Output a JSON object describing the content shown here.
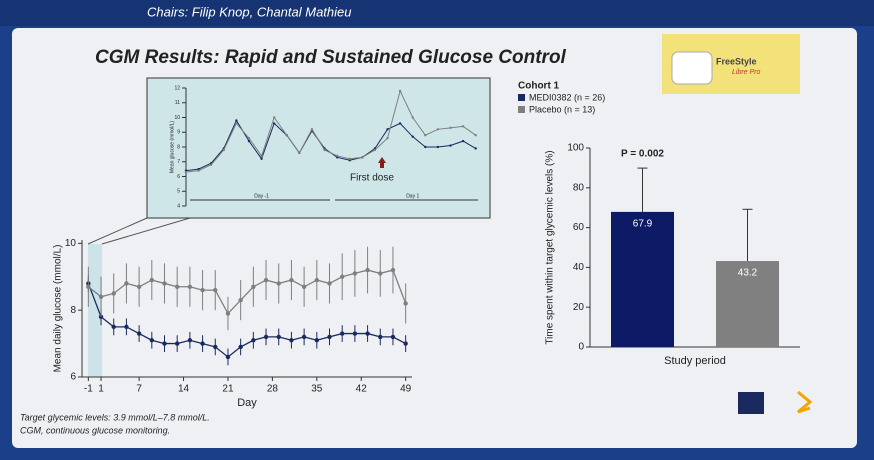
{
  "header": {
    "chairs": "Chairs: Filip Knop, Chantal Mathieu"
  },
  "slide": {
    "title": "CGM Results: Rapid and Sustained Glucose Control",
    "logo_text": [
      "FreeStyle",
      "Libre Pro"
    ],
    "footnotes": [
      "Target glycemic levels: 3.9 mmol/L–7.8 mmol/L.",
      "CGM, continuous glucose monitoring."
    ]
  },
  "chart_data": [
    {
      "type": "line",
      "x_label": "Day",
      "y_label": "Mean daily glucose (mmol/L)",
      "legend_title": "Cohort 1",
      "x": [
        -1,
        1,
        3,
        5,
        7,
        9,
        11,
        13,
        15,
        17,
        19,
        21,
        23,
        25,
        27,
        29,
        31,
        33,
        35,
        37,
        39,
        41,
        43,
        45,
        47,
        49
      ],
      "series": [
        {
          "name": "MEDI0382 (n = 26)",
          "color": "#1a2a5e",
          "values": [
            8.8,
            7.8,
            7.5,
            7.5,
            7.3,
            7.1,
            7.0,
            7.0,
            7.1,
            7.0,
            6.9,
            6.6,
            6.9,
            7.1,
            7.2,
            7.2,
            7.1,
            7.2,
            7.1,
            7.2,
            7.3,
            7.3,
            7.3,
            7.2,
            7.2,
            7.0
          ],
          "errors": [
            0.25,
            0.25,
            0.25,
            0.25,
            0.25,
            0.25,
            0.25,
            0.25,
            0.25,
            0.25,
            0.25,
            0.25,
            0.25,
            0.25,
            0.25,
            0.25,
            0.25,
            0.25,
            0.25,
            0.25,
            0.25,
            0.25,
            0.25,
            0.25,
            0.25,
            0.25
          ]
        },
        {
          "name": "Placebo (n = 13)",
          "color": "#7f7f7f",
          "values": [
            8.7,
            8.4,
            8.5,
            8.8,
            8.7,
            8.9,
            8.8,
            8.7,
            8.7,
            8.6,
            8.6,
            7.9,
            8.3,
            8.7,
            8.9,
            8.8,
            8.9,
            8.7,
            8.9,
            8.8,
            9.0,
            9.1,
            9.2,
            9.1,
            9.2,
            8.2
          ],
          "errors": [
            0.6,
            0.6,
            0.6,
            0.6,
            0.6,
            0.6,
            0.6,
            0.6,
            0.6,
            0.6,
            0.6,
            0.5,
            0.6,
            0.6,
            0.6,
            0.6,
            0.6,
            0.6,
            0.6,
            0.6,
            0.7,
            0.7,
            0.7,
            0.7,
            0.7,
            0.6
          ]
        }
      ],
      "xlim": [
        -2,
        50
      ],
      "xticks": [
        -1,
        1,
        7,
        14,
        21,
        28,
        35,
        42,
        49
      ],
      "ylim": [
        6,
        10.1
      ],
      "yticks": [
        6,
        8,
        10
      ]
    },
    {
      "type": "line",
      "y_label": "Mean glucose (mmol/L)",
      "annotation": "First dose",
      "x": [
        0,
        2,
        4,
        6,
        8,
        10,
        12,
        14,
        16,
        18,
        20,
        22,
        24,
        26,
        28,
        30,
        32,
        34,
        36,
        38,
        40,
        42,
        44,
        46
      ],
      "series": [
        {
          "name": "MEDI0382 (n = 26)",
          "color": "#1a2a5e",
          "values": [
            6.4,
            6.5,
            6.9,
            7.9,
            9.8,
            8.4,
            7.2,
            9.6,
            8.8,
            7.6,
            9.1,
            7.9,
            7.3,
            7.1,
            7.3,
            7.9,
            9.2,
            9.6,
            8.7,
            8.0,
            8.0,
            8.1,
            8.4,
            7.9
          ]
        },
        {
          "name": "Placebo (n = 13)",
          "color": "#7f7f7f",
          "values": [
            6.3,
            6.4,
            6.8,
            7.8,
            9.6,
            8.6,
            7.4,
            10.0,
            8.8,
            7.6,
            9.2,
            7.8,
            7.4,
            7.2,
            7.3,
            7.8,
            8.6,
            11.8,
            10.0,
            8.8,
            9.2,
            9.3,
            9.4,
            8.8
          ]
        }
      ],
      "xlim": [
        0,
        47
      ],
      "xticks": [
        {
          "value": 12,
          "label": "Day -1"
        },
        {
          "value": 36,
          "label": "Day 1"
        }
      ],
      "ylim": [
        4,
        12
      ],
      "yticks": [
        4,
        5,
        6,
        7,
        8,
        9,
        10,
        11,
        12
      ]
    },
    {
      "type": "bar",
      "x_label": "Study period",
      "y_label": "Time spent within target glycemic levels (%)",
      "annotation": "P = 0.002",
      "categories": [
        "MEDI0382",
        "Placebo"
      ],
      "values": [
        67.9,
        43.2
      ],
      "errors": [
        22,
        26
      ],
      "colors": [
        "#0d1a66",
        "#808080"
      ],
      "ylim": [
        0,
        100
      ],
      "yticks": [
        0,
        20,
        40,
        60,
        80,
        100
      ]
    }
  ]
}
